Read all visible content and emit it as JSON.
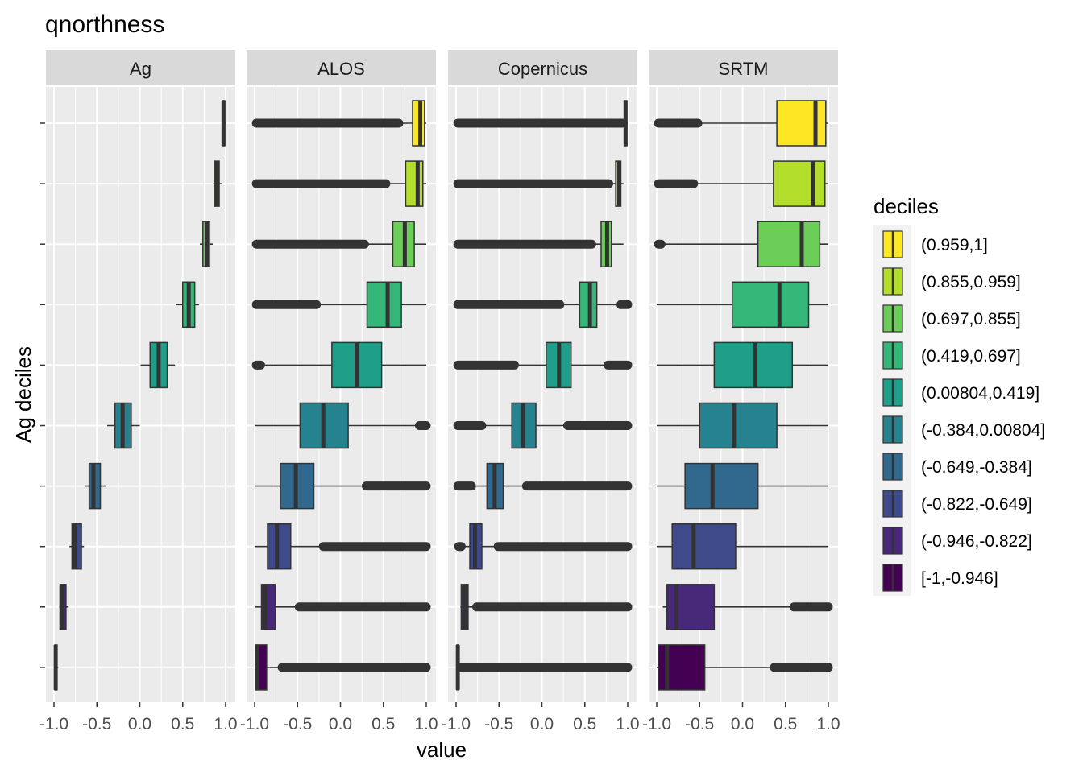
{
  "chart_data": {
    "type": "boxplot",
    "title": "qnorthness",
    "xlabel": "value",
    "ylabel": "Ag deciles",
    "xlim": [
      -1.0,
      1.0
    ],
    "x_ticks": [
      -1.0,
      -0.5,
      0.0,
      0.5,
      1.0
    ],
    "x_tick_labels": [
      "-1.0",
      "-0.5",
      "0.0",
      "0.5",
      "1.0"
    ],
    "facets": [
      "Ag",
      "ALOS",
      "Copernicus",
      "SRTM"
    ],
    "legend": {
      "title": "deciles",
      "placement": "right",
      "entries": [
        "(0.959,1]",
        "(0.855,0.959]",
        "(0.697,0.855]",
        "(0.419,0.697]",
        "(0.00804,0.419]",
        "(-0.384,0.00804]",
        "(-0.649,-0.384]",
        "(-0.822,-0.649]",
        "(-0.946,-0.822]",
        "[-1,-0.946]"
      ],
      "colors": [
        "#FDE725",
        "#B4DE2C",
        "#6DCD59",
        "#35B779",
        "#1F9E89",
        "#26828E",
        "#31688E",
        "#3E4A89",
        "#482878",
        "#440154"
      ]
    },
    "series": [
      {
        "name": "Ag",
        "boxes": [
          {
            "decile": "(0.959,1]",
            "whisker_low": 0.96,
            "q1": 0.963,
            "median": 0.975,
            "q3": 0.99,
            "whisker_high": 1.0,
            "outliers": []
          },
          {
            "decile": "(0.855,0.959]",
            "whisker_low": 0.855,
            "q1": 0.87,
            "median": 0.9,
            "q3": 0.925,
            "whisker_high": 0.955,
            "outliers": []
          },
          {
            "decile": "(0.697,0.855]",
            "whisker_low": 0.7,
            "q1": 0.735,
            "median": 0.78,
            "q3": 0.815,
            "whisker_high": 0.85,
            "outliers": []
          },
          {
            "decile": "(0.419,0.697]",
            "whisker_low": 0.42,
            "q1": 0.5,
            "median": 0.57,
            "q3": 0.64,
            "whisker_high": 0.69,
            "outliers": []
          },
          {
            "decile": "(0.00804,0.419]",
            "whisker_low": 0.01,
            "q1": 0.12,
            "median": 0.22,
            "q3": 0.32,
            "whisker_high": 0.41,
            "outliers": []
          },
          {
            "decile": "(-0.384,0.00804]",
            "whisker_low": -0.38,
            "q1": -0.29,
            "median": -0.2,
            "q3": -0.1,
            "whisker_high": 0.0,
            "outliers": []
          },
          {
            "decile": "(-0.649,-0.384]",
            "whisker_low": -0.64,
            "q1": -0.59,
            "median": -0.54,
            "q3": -0.46,
            "whisker_high": -0.39,
            "outliers": []
          },
          {
            "decile": "(-0.822,-0.649]",
            "whisker_low": -0.82,
            "q1": -0.79,
            "median": -0.76,
            "q3": -0.68,
            "whisker_high": -0.65,
            "outliers": []
          },
          {
            "decile": "(-0.946,-0.822]",
            "whisker_low": -0.94,
            "q1": -0.93,
            "median": -0.9,
            "q3": -0.86,
            "whisker_high": -0.83,
            "outliers": []
          },
          {
            "decile": "[-1,-0.946]",
            "whisker_low": -1.0,
            "q1": -0.99,
            "median": -0.98,
            "q3": -0.965,
            "whisker_high": -0.95,
            "outliers": []
          }
        ]
      },
      {
        "name": "ALOS",
        "boxes": [
          {
            "decile": "(0.959,1]",
            "whisker_low": 0.7,
            "q1": 0.84,
            "median": 0.93,
            "q3": 0.98,
            "whisker_high": 1.0,
            "outliers": [
              [
                -0.98,
                0.68
              ]
            ]
          },
          {
            "decile": "(0.855,0.959]",
            "whisker_low": 0.55,
            "q1": 0.76,
            "median": 0.9,
            "q3": 0.96,
            "whisker_high": 1.0,
            "outliers": [
              [
                -0.98,
                0.53
              ]
            ]
          },
          {
            "decile": "(0.697,0.855]",
            "whisker_low": 0.3,
            "q1": 0.61,
            "median": 0.75,
            "q3": 0.86,
            "whisker_high": 1.0,
            "outliers": [
              [
                -0.98,
                0.28
              ]
            ]
          },
          {
            "decile": "(0.419,0.697]",
            "whisker_low": -0.26,
            "q1": 0.31,
            "median": 0.55,
            "q3": 0.71,
            "whisker_high": 1.0,
            "outliers": [
              [
                -0.98,
                -0.28
              ]
            ]
          },
          {
            "decile": "(0.00804,0.419]",
            "whisker_low": -0.9,
            "q1": -0.1,
            "median": 0.19,
            "q3": 0.48,
            "whisker_high": 1.0,
            "outliers": [
              [
                -0.98,
                -0.93
              ]
            ]
          },
          {
            "decile": "(-0.384,0.00804]",
            "whisker_low": -1.0,
            "q1": -0.47,
            "median": -0.2,
            "q3": 0.09,
            "whisker_high": 0.9,
            "outliers": [
              [
                0.92,
                1.0
              ]
            ]
          },
          {
            "decile": "(-0.649,-0.384]",
            "whisker_low": -1.0,
            "q1": -0.7,
            "median": -0.52,
            "q3": -0.31,
            "whisker_high": 0.28,
            "outliers": [
              [
                0.3,
                1.0
              ]
            ]
          },
          {
            "decile": "(-0.822,-0.649]",
            "whisker_low": -1.0,
            "q1": -0.85,
            "median": -0.74,
            "q3": -0.58,
            "whisker_high": -0.22,
            "outliers": [
              [
                -0.2,
                1.0
              ]
            ]
          },
          {
            "decile": "(-0.946,-0.822]",
            "whisker_low": -1.0,
            "q1": -0.92,
            "median": -0.88,
            "q3": -0.76,
            "whisker_high": -0.5,
            "outliers": [
              [
                -0.48,
                1.0
              ]
            ]
          },
          {
            "decile": "[-1,-0.946]",
            "whisker_low": -1.0,
            "q1": -0.99,
            "median": -0.97,
            "q3": -0.86,
            "whisker_high": -0.7,
            "outliers": [
              [
                -0.68,
                1.0
              ]
            ]
          }
        ]
      },
      {
        "name": "Copernicus",
        "boxes": [
          {
            "decile": "(0.959,1]",
            "whisker_low": 0.94,
            "q1": 0.96,
            "median": 0.975,
            "q3": 0.99,
            "whisker_high": 1.0,
            "outliers": [
              [
                -0.98,
                0.94
              ]
            ]
          },
          {
            "decile": "(0.855,0.959]",
            "whisker_low": 0.8,
            "q1": 0.86,
            "median": 0.9,
            "q3": 0.92,
            "whisker_high": 0.95,
            "outliers": [
              [
                -0.98,
                0.78
              ]
            ]
          },
          {
            "decile": "(0.697,0.855]",
            "whisker_low": 0.6,
            "q1": 0.69,
            "median": 0.76,
            "q3": 0.81,
            "whisker_high": 0.95,
            "outliers": [
              [
                -0.98,
                0.58
              ]
            ]
          },
          {
            "decile": "(0.419,0.697]",
            "whisker_low": 0.23,
            "q1": 0.44,
            "median": 0.56,
            "q3": 0.64,
            "whisker_high": 0.9,
            "outliers": [
              [
                -0.98,
                0.21
              ],
              [
                0.92,
                1.0
              ]
            ]
          },
          {
            "decile": "(0.00804,0.419]",
            "whisker_low": -0.3,
            "q1": 0.05,
            "median": 0.2,
            "q3": 0.34,
            "whisker_high": 0.75,
            "outliers": [
              [
                -0.98,
                -0.32
              ],
              [
                0.77,
                1.0
              ]
            ]
          },
          {
            "decile": "(-0.384,0.00804]",
            "whisker_low": -0.68,
            "q1": -0.35,
            "median": -0.22,
            "q3": -0.07,
            "whisker_high": 0.28,
            "outliers": [
              [
                -0.98,
                -0.7
              ],
              [
                0.3,
                1.0
              ]
            ]
          },
          {
            "decile": "(-0.649,-0.384]",
            "whisker_low": -0.8,
            "q1": -0.64,
            "median": -0.55,
            "q3": -0.45,
            "whisker_high": -0.2,
            "outliers": [
              [
                -0.98,
                -0.82
              ],
              [
                -0.18,
                1.0
              ]
            ]
          },
          {
            "decile": "(-0.822,-0.649]",
            "whisker_low": -0.9,
            "q1": -0.84,
            "median": -0.78,
            "q3": -0.7,
            "whisker_high": -0.53,
            "outliers": [
              [
                -0.97,
                -0.94
              ],
              [
                -0.51,
                1.0
              ]
            ]
          },
          {
            "decile": "(-0.946,-0.822]",
            "whisker_low": -0.95,
            "q1": -0.94,
            "median": -0.9,
            "q3": -0.86,
            "whisker_high": -0.78,
            "outliers": [
              [
                -0.76,
                1.0
              ]
            ]
          },
          {
            "decile": "[-1,-0.946]",
            "whisker_low": -1.0,
            "q1": -0.99,
            "median": -0.98,
            "q3": -0.97,
            "whisker_high": -0.96,
            "outliers": [
              [
                -0.94,
                1.0
              ]
            ]
          }
        ]
      },
      {
        "name": "SRTM",
        "boxes": [
          {
            "decile": "(0.959,1]",
            "whisker_low": -0.5,
            "q1": 0.4,
            "median": 0.85,
            "q3": 0.97,
            "whisker_high": 1.0,
            "outliers": [
              [
                -0.98,
                -0.52
              ]
            ]
          },
          {
            "decile": "(0.855,0.959]",
            "whisker_low": -0.55,
            "q1": 0.36,
            "median": 0.82,
            "q3": 0.96,
            "whisker_high": 1.0,
            "outliers": [
              [
                -0.98,
                -0.57
              ]
            ]
          },
          {
            "decile": "(0.697,0.855]",
            "whisker_low": -0.93,
            "q1": 0.18,
            "median": 0.69,
            "q3": 0.9,
            "whisker_high": 1.0,
            "outliers": [
              [
                -0.98,
                -0.95
              ]
            ]
          },
          {
            "decile": "(0.419,0.697]",
            "whisker_low": -1.0,
            "q1": -0.12,
            "median": 0.43,
            "q3": 0.77,
            "whisker_high": 1.0,
            "outliers": []
          },
          {
            "decile": "(0.00804,0.419]",
            "whisker_low": -1.0,
            "q1": -0.33,
            "median": 0.15,
            "q3": 0.58,
            "whisker_high": 1.0,
            "outliers": []
          },
          {
            "decile": "(-0.384,0.00804]",
            "whisker_low": -1.0,
            "q1": -0.5,
            "median": -0.1,
            "q3": 0.4,
            "whisker_high": 1.0,
            "outliers": []
          },
          {
            "decile": "(-0.649,-0.384]",
            "whisker_low": -1.0,
            "q1": -0.67,
            "median": -0.35,
            "q3": 0.18,
            "whisker_high": 1.0,
            "outliers": []
          },
          {
            "decile": "(-0.822,-0.649]",
            "whisker_low": -1.0,
            "q1": -0.82,
            "median": -0.57,
            "q3": -0.08,
            "whisker_high": 1.0,
            "outliers": []
          },
          {
            "decile": "(-0.946,-0.822]",
            "whisker_low": -0.93,
            "q1": -0.88,
            "median": -0.77,
            "q3": -0.33,
            "whisker_high": 0.58,
            "outliers": [
              [
                0.6,
                1.0
              ]
            ]
          },
          {
            "decile": "[-1,-0.946]",
            "whisker_low": -1.0,
            "q1": -0.98,
            "median": -0.88,
            "q3": -0.44,
            "whisker_high": 0.35,
            "outliers": [
              [
                0.37,
                1.0
              ]
            ]
          }
        ]
      }
    ]
  }
}
